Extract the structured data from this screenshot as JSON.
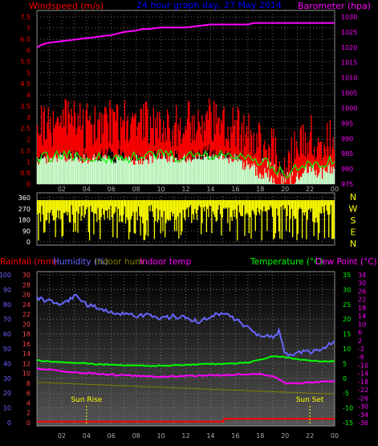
{
  "header": {
    "left_label": "Windspeed (m/s)",
    "title": "24 hour graph day, 27 May 2014",
    "right_label": "Barometer (hpa)"
  },
  "compass_letters": [
    "N",
    "W",
    "S",
    "E",
    "N"
  ],
  "bottom_header": {
    "rainfall": "Rainfall (mm)",
    "humidity": "Humidity (%)",
    "indoor_hum": "Indoor hum",
    "indoor_temp": "Indoor temp",
    "temperature": "Temperature (°C)",
    "dew_point": "Dew Point (°C)"
  },
  "annotations": {
    "sunrise": "Sun Rise",
    "sunset": "Sun Set"
  },
  "colors": {
    "wind": "#ff0000",
    "gust_fill": "#ccffcc",
    "avg_wind": "#00ff00",
    "barometer": "#ff00ff",
    "direction": "#ffff00",
    "humidity": "#6666ff",
    "temperature": "#00ff00",
    "dew_point": "#ff00ff",
    "rainfall": "#ff0000",
    "indoor": "#808000"
  },
  "chart_data": [
    {
      "type": "line",
      "x_ticks": [
        "02",
        "04",
        "06",
        "08",
        "10",
        "12",
        "14",
        "16",
        "18",
        "20",
        "22",
        "00"
      ],
      "y_left_ticks": [
        "0",
        "0.5",
        "1",
        "1.5",
        "2",
        "2.5",
        "3",
        "3.5",
        "4",
        "4.5",
        "5",
        "5.5",
        "6",
        "6.5",
        "7",
        "7.5"
      ],
      "y_left_lim": [
        0,
        7.5
      ],
      "y_right_ticks": [
        "975",
        "980",
        "985",
        "990",
        "995",
        "1000",
        "1005",
        "1010",
        "1015",
        "1020",
        "1025",
        "1030"
      ],
      "y_right_lim": [
        975,
        1030
      ],
      "series": [
        {
          "axis": "right",
          "x": [
            0,
            0.5,
            1,
            2,
            3,
            4,
            5,
            6,
            7,
            8,
            8.5,
            9,
            10,
            11,
            12,
            13,
            14,
            15,
            16,
            17,
            17.5,
            18,
            19,
            20,
            21,
            22,
            23,
            24
          ],
          "values": [
            1020,
            1021,
            1021.5,
            1022,
            1022.5,
            1023,
            1023.5,
            1024,
            1025,
            1025.5,
            1026,
            1026,
            1026.5,
            1026.5,
            1026.5,
            1027,
            1027.5,
            1027.5,
            1027.5,
            1027.5,
            1028,
            1028,
            1028,
            1028,
            1028,
            1028,
            1028,
            1028
          ]
        },
        {
          "axis": "left",
          "x": [
            0,
            2,
            4,
            6,
            8,
            10,
            12,
            14,
            16,
            18,
            19,
            19.5,
            20,
            21,
            22,
            23,
            24
          ],
          "values": [
            2.2,
            2.4,
            2.3,
            2.5,
            2.2,
            2.4,
            2.3,
            2.6,
            2.2,
            1.6,
            1.4,
            0.6,
            0.2,
            1.4,
            1.8,
            1.6,
            1.9
          ]
        },
        {
          "axis": "left",
          "x": [
            0,
            2,
            4,
            6,
            8,
            10,
            12,
            14,
            16,
            18,
            19,
            20,
            21,
            22,
            23,
            24
          ],
          "values": [
            1.2,
            1.3,
            1.2,
            1.1,
            1.2,
            1.3,
            1.2,
            1.3,
            1.2,
            1.0,
            0.8,
            0.4,
            0.7,
            0.9,
            1.0,
            1.0
          ]
        }
      ]
    },
    {
      "type": "bar",
      "y_ticks": [
        "0",
        "90",
        "180",
        "270",
        "360"
      ],
      "ylim": [
        0,
        360
      ],
      "x": [
        0,
        24
      ],
      "values": [
        340,
        340
      ]
    },
    {
      "type": "line",
      "y_left_outer_ticks": [
        "0",
        "10",
        "20",
        "30",
        "40",
        "50",
        "60",
        "70",
        "80",
        "90",
        "100"
      ],
      "y_left_inner_ticks": [
        "0",
        "2",
        "4",
        "6",
        "8",
        "10",
        "12",
        "14",
        "16",
        "18",
        "20",
        "22",
        "24",
        "26",
        "28",
        "30"
      ],
      "y_right_inner_ticks": [
        "-15",
        "-10",
        "-5",
        "0",
        "5",
        "10",
        "15",
        "20",
        "25",
        "30",
        "35"
      ],
      "y_right_outer_ticks": [
        "-36",
        "-34",
        "-30",
        "-26",
        "-22",
        "-18",
        "-14",
        "-10",
        "-6",
        "-2",
        "2",
        "6",
        "10",
        "14",
        "18",
        "22",
        "26",
        "30",
        "34"
      ],
      "x_ticks": [
        "02",
        "04",
        "06",
        "08",
        "10",
        "12",
        "14",
        "16",
        "18",
        "20",
        "22",
        "00"
      ],
      "series": [
        {
          "name": "Humidity (%)",
          "x": [
            0,
            1,
            2,
            3,
            4,
            5,
            6,
            7,
            8,
            9,
            10,
            11,
            12,
            13,
            14,
            15,
            16,
            17,
            18,
            18.5,
            19,
            19.5,
            20,
            21,
            22,
            23,
            24
          ],
          "values": [
            84,
            82,
            80,
            86,
            80,
            78,
            75,
            73,
            72,
            74,
            70,
            72,
            71,
            68,
            72,
            74,
            70,
            64,
            58,
            60,
            58,
            62,
            46,
            47,
            48,
            50,
            55
          ]
        },
        {
          "name": "Temperature (°C)",
          "x": [
            0,
            2,
            4,
            6,
            8,
            10,
            12,
            14,
            16,
            17,
            18,
            19,
            20,
            21,
            22,
            23,
            24
          ],
          "values": [
            6,
            5.5,
            5,
            4.5,
            4.2,
            4.3,
            4.6,
            4.8,
            5,
            5.4,
            6.2,
            7.6,
            7.2,
            6.5,
            6,
            5.8,
            5.8
          ]
        },
        {
          "name": "Dew Point (°C)",
          "x": [
            0,
            2,
            4,
            6,
            8,
            10,
            12,
            14,
            16,
            18,
            19,
            20,
            21,
            22,
            23,
            24
          ],
          "values": [
            3.2,
            2.5,
            1.8,
            1.2,
            0.8,
            0.5,
            0.8,
            1.0,
            1.2,
            1.5,
            0.8,
            -1.5,
            -1.8,
            -1.4,
            -1.2,
            -1.0
          ]
        },
        {
          "name": "Indoor hum",
          "x": [
            0,
            4,
            8,
            12,
            16,
            20,
            24
          ],
          "values": [
            8.2,
            7.8,
            7.4,
            7.0,
            6.6,
            6.2,
            5.8
          ]
        },
        {
          "name": "Rainfall (mm)",
          "x": [
            0,
            15,
            15.1,
            24
          ],
          "values": [
            0.2,
            0.2,
            0.8,
            0.8
          ]
        }
      ],
      "annotations": [
        {
          "text": "Sun Rise",
          "x": 4
        },
        {
          "text": "Sun Set",
          "x": 22
        }
      ]
    }
  ]
}
